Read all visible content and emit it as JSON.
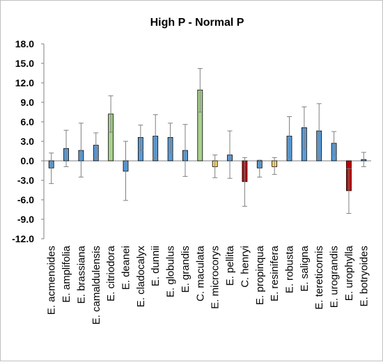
{
  "chart_data": {
    "type": "bar",
    "title": "High P - Normal P",
    "xlabel": "",
    "ylabel": "",
    "ylim": [
      -12.0,
      18.0
    ],
    "y_ticks": [
      "18.0",
      "15.0",
      "12.0",
      "9.0",
      "6.0",
      "3.0",
      "0.0",
      "-3.0",
      "-6.0",
      "-9.0",
      "-12.0"
    ],
    "y_tick_values": [
      18,
      15,
      12,
      9,
      6,
      3,
      0,
      -3,
      -6,
      -9,
      -12
    ],
    "grid": false,
    "legend": "none",
    "colors": {
      "blue": "#5b9bd5",
      "green": "#a9d18e",
      "yellow": "#ffd966",
      "red": "#c00000",
      "error_bar": "#7f7f7f"
    },
    "categories": [
      "E. acmenoides",
      "E. amplifolia",
      "E. brassiana",
      "E. camaldulensis",
      "E. citriodora",
      "E. deanei",
      "E. cladocalyx",
      "E. dunnii",
      "E. globulus",
      "E. grandis",
      "C. maculata",
      "E. microcorys",
      "E. pellita",
      "C. henryi",
      "E. propinqua",
      "E. resinifera",
      "E. robusta",
      "E. saligna",
      "E. tereticornis",
      "E. urograndis",
      "E. urophylla",
      "E. botryoides"
    ],
    "values": [
      -1.1,
      1.9,
      1.6,
      2.4,
      7.2,
      -1.6,
      3.6,
      3.8,
      3.6,
      1.6,
      10.9,
      -0.9,
      0.9,
      -3.2,
      -1.1,
      -0.9,
      3.8,
      5.1,
      4.6,
      2.7,
      -4.6,
      0.2
    ],
    "error_upper": [
      1.2,
      4.7,
      5.8,
      4.3,
      10.0,
      3.0,
      5.5,
      7.1,
      5.8,
      5.6,
      14.2,
      0.9,
      4.6,
      0.5,
      0.1,
      0.5,
      6.8,
      8.3,
      8.8,
      4.5,
      -1.2,
      1.3
    ],
    "error_lower": [
      -3.5,
      -0.9,
      -2.5,
      0.4,
      4.4,
      -6.1,
      1.6,
      0.4,
      1.3,
      -2.4,
      7.5,
      -2.6,
      -2.7,
      -7.0,
      -2.5,
      -2.1,
      0.5,
      1.8,
      0.3,
      0.8,
      -8.1,
      -0.9
    ],
    "bar_colors": [
      "blue",
      "blue",
      "blue",
      "blue",
      "green",
      "blue",
      "blue",
      "blue",
      "blue",
      "blue",
      "green",
      "yellow",
      "blue",
      "red",
      "blue",
      "yellow",
      "blue",
      "blue",
      "blue",
      "blue",
      "red",
      "blue"
    ]
  }
}
